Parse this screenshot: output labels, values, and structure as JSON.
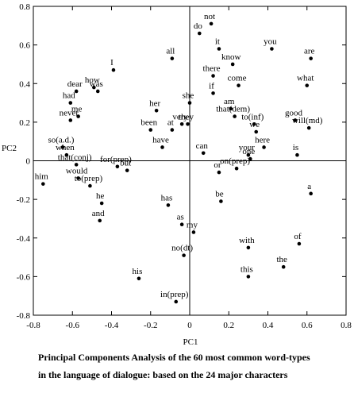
{
  "chart_data": {
    "type": "scatter",
    "xlabel": "PC1",
    "ylabel": "PC2",
    "caption": [
      "Principal Components Analysis of the 60 most common word-types",
      "in the language of  dialogue: based on the 24 major characters"
    ],
    "xlim": [
      -0.8,
      0.8
    ],
    "ylim": [
      -0.8,
      0.8
    ],
    "xticks": [
      -0.8,
      -0.6,
      -0.4,
      -0.2,
      0,
      0.2,
      0.4,
      0.6,
      0.8
    ],
    "yticks": [
      -0.8,
      -0.6,
      -0.4,
      -0.2,
      0,
      0.2,
      0.4,
      0.6,
      0.8
    ],
    "color": "#000000",
    "labels": [
      "not",
      "do",
      "it",
      "you",
      "are",
      "know",
      "all",
      "I",
      "there",
      "come",
      "what",
      "dear",
      "how",
      "was",
      "had",
      "if",
      "am",
      "her",
      "she",
      "me",
      "never",
      "that(dem)",
      "good",
      "to(inf)",
      "been",
      "at",
      "very",
      "they",
      "will(md)",
      "so(a.d.)",
      "have",
      "we",
      "here",
      "when",
      "can",
      "is",
      "your",
      "one",
      "that(conj)",
      "for(prep)",
      "but",
      "or",
      "on(prep)",
      "him",
      "would",
      "to(prep)",
      "a",
      "be",
      "he",
      "has",
      "and",
      "as",
      "my",
      "with",
      "of",
      "no(dt)",
      "the",
      "his",
      "this",
      "in(prep)"
    ],
    "x": [
      0.11,
      0.05,
      0.15,
      0.42,
      0.62,
      0.22,
      -0.09,
      -0.39,
      0.12,
      0.25,
      0.6,
      -0.58,
      -0.49,
      -0.47,
      -0.61,
      0.12,
      0.21,
      -0.17,
      0.0,
      -0.57,
      -0.61,
      0.23,
      0.54,
      0.33,
      -0.2,
      -0.09,
      -0.04,
      -0.01,
      0.61,
      -0.65,
      -0.14,
      0.34,
      0.38,
      -0.63,
      0.07,
      0.55,
      0.3,
      0.31,
      -0.58,
      -0.37,
      -0.32,
      0.15,
      0.24,
      -0.75,
      -0.57,
      -0.51,
      0.62,
      0.16,
      -0.45,
      -0.11,
      -0.46,
      -0.04,
      0.02,
      0.3,
      0.56,
      -0.03,
      0.48,
      -0.26,
      0.3,
      -0.07
    ],
    "y": [
      0.71,
      0.66,
      0.58,
      0.58,
      0.53,
      0.5,
      0.53,
      0.47,
      0.44,
      0.39,
      0.39,
      0.36,
      0.38,
      0.36,
      0.3,
      0.35,
      0.27,
      0.26,
      0.3,
      0.23,
      0.21,
      0.23,
      0.21,
      0.19,
      0.16,
      0.16,
      0.19,
      0.19,
      0.17,
      0.07,
      0.07,
      0.15,
      0.07,
      0.03,
      0.04,
      0.03,
      0.03,
      0.01,
      -0.02,
      -0.03,
      -0.05,
      -0.06,
      -0.04,
      -0.12,
      -0.09,
      -0.13,
      -0.17,
      -0.21,
      -0.22,
      -0.23,
      -0.31,
      -0.33,
      -0.37,
      -0.45,
      -0.43,
      -0.49,
      -0.55,
      -0.61,
      -0.6,
      -0.73
    ]
  }
}
